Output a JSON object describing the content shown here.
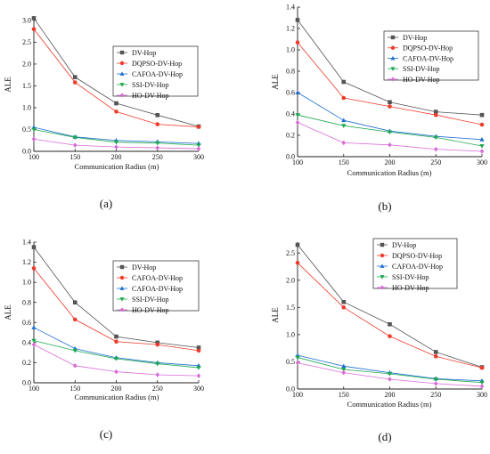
{
  "chart_data": [
    {
      "type": "line",
      "panel_label": "(a)",
      "xlabel": "Communication Radius (m)",
      "ylabel": "ALE",
      "x": [
        100,
        150,
        200,
        250,
        300
      ],
      "xticks": [
        "100",
        "150",
        "200",
        "250",
        "300"
      ],
      "xlim": [
        100,
        300
      ],
      "ylim": [
        0,
        3.1
      ],
      "yticks": [
        0.0,
        0.5,
        1.0,
        1.5,
        2.0,
        2.5,
        3.0
      ],
      "ytick_labels": [
        "0.0",
        "0.5",
        "1.0",
        "1.5",
        "2.0",
        "2.5",
        "3.0"
      ],
      "legend_position": "right",
      "series": [
        {
          "name": "DV-Hop",
          "color": "#555555",
          "marker": "square",
          "values": [
            3.05,
            1.7,
            1.1,
            0.83,
            0.57
          ]
        },
        {
          "name": "DQPSO-DV-Hop",
          "color": "#ee3b2b",
          "marker": "circle",
          "values": [
            2.8,
            1.58,
            0.91,
            0.62,
            0.56
          ]
        },
        {
          "name": "CAFOA-DV-Hop",
          "color": "#1f6fd0",
          "marker": "triangle-up",
          "values": [
            0.55,
            0.33,
            0.25,
            0.22,
            0.18
          ]
        },
        {
          "name": "SSI-DV-Hop",
          "color": "#1ea850",
          "marker": "triangle-down",
          "values": [
            0.5,
            0.32,
            0.21,
            0.19,
            0.14
          ]
        },
        {
          "name": "HO-DV-Hop",
          "color": "#d86ad8",
          "marker": "diamond",
          "values": [
            0.28,
            0.14,
            0.1,
            0.08,
            0.06
          ]
        }
      ]
    },
    {
      "type": "line",
      "panel_label": "(b)",
      "xlabel": "Communication Radius (m)",
      "ylabel": "ALE",
      "x": [
        100,
        150,
        200,
        250,
        300
      ],
      "xticks": [
        "100",
        "150",
        "200",
        "250",
        "300"
      ],
      "xlim": [
        100,
        300
      ],
      "ylim": [
        0,
        1.4
      ],
      "yticks": [
        0.0,
        0.2,
        0.4,
        0.6,
        0.8,
        1.0,
        1.2,
        1.4
      ],
      "ytick_labels": [
        "0.0",
        "0.2",
        "0.4",
        "0.6",
        "0.8",
        "1.0",
        "1.2",
        "1.4"
      ],
      "legend_position": "top-right",
      "series": [
        {
          "name": "DV-Hop",
          "color": "#555555",
          "marker": "square",
          "values": [
            1.28,
            0.7,
            0.51,
            0.42,
            0.39
          ]
        },
        {
          "name": "DQPSO-DV-Hop",
          "color": "#ee3b2b",
          "marker": "circle",
          "values": [
            1.07,
            0.55,
            0.47,
            0.39,
            0.3
          ]
        },
        {
          "name": "CAFOA-DV-Hop",
          "color": "#1f6fd0",
          "marker": "triangle-up",
          "values": [
            0.6,
            0.34,
            0.24,
            0.19,
            0.16
          ]
        },
        {
          "name": "SSI-DV-Hop",
          "color": "#1ea850",
          "marker": "triangle-down",
          "values": [
            0.39,
            0.29,
            0.23,
            0.18,
            0.1
          ]
        },
        {
          "name": "HO-DV-Hop",
          "color": "#d86ad8",
          "marker": "diamond",
          "values": [
            0.32,
            0.13,
            0.11,
            0.07,
            0.05
          ]
        }
      ]
    },
    {
      "type": "line",
      "panel_label": "(c)",
      "xlabel": "Communication Radius (m)",
      "ylabel": "ALE",
      "x": [
        100,
        150,
        200,
        250,
        300
      ],
      "xticks": [
        "100",
        "150",
        "200",
        "250",
        "300"
      ],
      "xlim": [
        100,
        300
      ],
      "ylim": [
        0,
        1.4
      ],
      "yticks": [
        0.0,
        0.2,
        0.4,
        0.6,
        0.8,
        1.0,
        1.2,
        1.4
      ],
      "ytick_labels": [
        "0.0",
        "0.2",
        "0.4",
        "0.6",
        "0.8",
        "1.0",
        "1.2",
        "1.4"
      ],
      "legend_position": "right",
      "series": [
        {
          "name": "DV-Hop",
          "color": "#555555",
          "marker": "square",
          "values": [
            1.35,
            0.8,
            0.46,
            0.4,
            0.35
          ]
        },
        {
          "name": "CAFOA-DV-Hop",
          "color": "#ee3b2b",
          "marker": "circle",
          "values": [
            1.14,
            0.63,
            0.41,
            0.38,
            0.32
          ]
        },
        {
          "name": "CAFOA-DV-Hop",
          "color": "#1f6fd0",
          "marker": "triangle-up",
          "values": [
            0.55,
            0.34,
            0.25,
            0.2,
            0.17
          ]
        },
        {
          "name": "SSI-DV-Hop",
          "color": "#1ea850",
          "marker": "triangle-down",
          "values": [
            0.42,
            0.32,
            0.24,
            0.19,
            0.15
          ]
        },
        {
          "name": "HO-DV-Hop",
          "color": "#d86ad8",
          "marker": "diamond",
          "values": [
            0.38,
            0.17,
            0.11,
            0.08,
            0.07
          ]
        }
      ]
    },
    {
      "type": "line",
      "panel_label": "(d)",
      "xlabel": "Communication Radius (m)",
      "ylabel": "ALE",
      "x": [
        100,
        150,
        200,
        250,
        300
      ],
      "xticks": [
        "100",
        "150",
        "200",
        "250",
        "300"
      ],
      "xlim": [
        100,
        300
      ],
      "ylim": [
        0,
        2.7
      ],
      "yticks": [
        0.0,
        0.5,
        1.0,
        1.5,
        2.0,
        2.5
      ],
      "ytick_labels": [
        "0.0",
        "0.5",
        "1.0",
        "1.5",
        "2.0",
        "2.5"
      ],
      "legend_position": "top-right",
      "series": [
        {
          "name": "DV-Hop",
          "color": "#555555",
          "marker": "square",
          "values": [
            2.65,
            1.6,
            1.19,
            0.68,
            0.4
          ]
        },
        {
          "name": "DQPSO-DV-Hop",
          "color": "#ee3b2b",
          "marker": "circle",
          "values": [
            2.32,
            1.5,
            0.97,
            0.6,
            0.39
          ]
        },
        {
          "name": "CAFOA-DV-Hop",
          "color": "#1f6fd0",
          "marker": "triangle-up",
          "values": [
            0.62,
            0.42,
            0.3,
            0.19,
            0.15
          ]
        },
        {
          "name": "SSI-DV-Hop",
          "color": "#1ea850",
          "marker": "triangle-down",
          "values": [
            0.58,
            0.36,
            0.28,
            0.18,
            0.12
          ]
        },
        {
          "name": "HO-DV-Hop",
          "color": "#d86ad8",
          "marker": "diamond",
          "values": [
            0.48,
            0.3,
            0.18,
            0.1,
            0.05
          ]
        }
      ]
    }
  ]
}
